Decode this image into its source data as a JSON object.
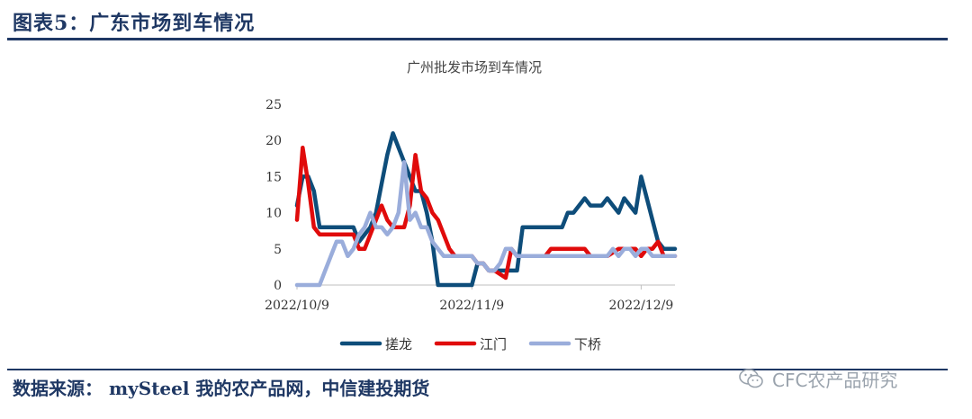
{
  "figure": {
    "title": "图表5：广东市场到车情况",
    "source": "数据来源：  mySteel 我的农产品网，中信建投期货",
    "watermark": "CFC农产品研究",
    "rule_color": "#1f3864"
  },
  "chart_data": {
    "type": "line",
    "title": "广州批发市场到车情况",
    "xlabel": "",
    "ylabel": "",
    "x_tick_labels": [
      "2022/10/9",
      "2022/11/9",
      "2022/12/9"
    ],
    "x_tick_dates": [
      "2022-10-09",
      "2022-11-09",
      "2022-12-09"
    ],
    "x_range": [
      "2022-10-09",
      "2022-12-15"
    ],
    "ylim": [
      0,
      25
    ],
    "y_ticks": [
      0,
      5,
      10,
      15,
      20,
      25
    ],
    "grid": false,
    "legend_position": "bottom",
    "series": [
      {
        "name": "搓龙",
        "color": "#0e4d7a",
        "points": [
          [
            "2022-10-09",
            11
          ],
          [
            "2022-10-10",
            15
          ],
          [
            "2022-10-11",
            15
          ],
          [
            "2022-10-12",
            13
          ],
          [
            "2022-10-13",
            8
          ],
          [
            "2022-10-19",
            8
          ],
          [
            "2022-10-20",
            6
          ],
          [
            "2022-10-22",
            8
          ],
          [
            "2022-10-23",
            10
          ],
          [
            "2022-10-24",
            14
          ],
          [
            "2022-10-25",
            18
          ],
          [
            "2022-10-26",
            21
          ],
          [
            "2022-10-27",
            19
          ],
          [
            "2022-10-28",
            17
          ],
          [
            "2022-10-29",
            15
          ],
          [
            "2022-10-30",
            13
          ],
          [
            "2022-10-31",
            13
          ],
          [
            "2022-11-01",
            10
          ],
          [
            "2022-11-02",
            6
          ],
          [
            "2022-11-03",
            0
          ],
          [
            "2022-11-09",
            0
          ],
          [
            "2022-11-10",
            3
          ],
          [
            "2022-11-11",
            3
          ],
          [
            "2022-11-12",
            2
          ],
          [
            "2022-11-15",
            2
          ],
          [
            "2022-11-17",
            2
          ],
          [
            "2022-11-18",
            8
          ],
          [
            "2022-11-25",
            8
          ],
          [
            "2022-11-26",
            10
          ],
          [
            "2022-11-27",
            10
          ],
          [
            "2022-11-28",
            11
          ],
          [
            "2022-11-29",
            12
          ],
          [
            "2022-11-30",
            11
          ],
          [
            "2022-12-02",
            11
          ],
          [
            "2022-12-03",
            12
          ],
          [
            "2022-12-04",
            11
          ],
          [
            "2022-12-05",
            10
          ],
          [
            "2022-12-06",
            12
          ],
          [
            "2022-12-07",
            11
          ],
          [
            "2022-12-08",
            10
          ],
          [
            "2022-12-09",
            15
          ],
          [
            "2022-12-10",
            12
          ],
          [
            "2022-12-11",
            9
          ],
          [
            "2022-12-12",
            6
          ],
          [
            "2022-12-13",
            5
          ],
          [
            "2022-12-15",
            5
          ]
        ]
      },
      {
        "name": "江门",
        "color": "#e00b0b",
        "points": [
          [
            "2022-10-09",
            9
          ],
          [
            "2022-10-10",
            19
          ],
          [
            "2022-10-11",
            14
          ],
          [
            "2022-10-12",
            8
          ],
          [
            "2022-10-13",
            7
          ],
          [
            "2022-10-19",
            7
          ],
          [
            "2022-10-20",
            5
          ],
          [
            "2022-10-21",
            5
          ],
          [
            "2022-10-22",
            7
          ],
          [
            "2022-10-23",
            9
          ],
          [
            "2022-10-24",
            11
          ],
          [
            "2022-10-25",
            9
          ],
          [
            "2022-10-26",
            8
          ],
          [
            "2022-10-27",
            8
          ],
          [
            "2022-10-28",
            8
          ],
          [
            "2022-10-29",
            11
          ],
          [
            "2022-10-30",
            18
          ],
          [
            "2022-10-31",
            13
          ],
          [
            "2022-11-01",
            12
          ],
          [
            "2022-11-02",
            10
          ],
          [
            "2022-11-03",
            9
          ],
          [
            "2022-11-04",
            7
          ],
          [
            "2022-11-05",
            5
          ],
          [
            "2022-11-06",
            4
          ],
          [
            "2022-11-09",
            4
          ],
          [
            "2022-11-10",
            3
          ],
          [
            "2022-11-11",
            3
          ],
          [
            "2022-11-12",
            2
          ],
          [
            "2022-11-13",
            2
          ],
          [
            "2022-11-15",
            1
          ],
          [
            "2022-11-16",
            5
          ],
          [
            "2022-11-17",
            4
          ],
          [
            "2022-11-18",
            4
          ],
          [
            "2022-11-20",
            4
          ],
          [
            "2022-11-22",
            4
          ],
          [
            "2022-11-23",
            5
          ],
          [
            "2022-11-29",
            5
          ],
          [
            "2022-11-30",
            4
          ],
          [
            "2022-12-03",
            4
          ],
          [
            "2022-12-05",
            5
          ],
          [
            "2022-12-07",
            5
          ],
          [
            "2022-12-08",
            5
          ],
          [
            "2022-12-09",
            4
          ],
          [
            "2022-12-10",
            5
          ],
          [
            "2022-12-11",
            5
          ],
          [
            "2022-12-12",
            6
          ],
          [
            "2022-12-13",
            4
          ],
          [
            "2022-12-15",
            4
          ]
        ]
      },
      {
        "name": "下桥",
        "color": "#9aaddb",
        "points": [
          [
            "2022-10-09",
            0
          ],
          [
            "2022-10-13",
            0
          ],
          [
            "2022-10-14",
            2
          ],
          [
            "2022-10-15",
            4
          ],
          [
            "2022-10-16",
            6
          ],
          [
            "2022-10-17",
            6
          ],
          [
            "2022-10-18",
            4
          ],
          [
            "2022-10-19",
            5
          ],
          [
            "2022-10-20",
            7
          ],
          [
            "2022-10-21",
            8
          ],
          [
            "2022-10-22",
            10
          ],
          [
            "2022-10-23",
            8
          ],
          [
            "2022-10-24",
            8
          ],
          [
            "2022-10-25",
            7
          ],
          [
            "2022-10-26",
            8
          ],
          [
            "2022-10-27",
            10
          ],
          [
            "2022-10-28",
            17
          ],
          [
            "2022-10-29",
            9
          ],
          [
            "2022-10-30",
            10
          ],
          [
            "2022-10-31",
            8
          ],
          [
            "2022-11-01",
            8
          ],
          [
            "2022-11-02",
            6
          ],
          [
            "2022-11-03",
            5
          ],
          [
            "2022-11-04",
            4
          ],
          [
            "2022-11-09",
            4
          ],
          [
            "2022-11-10",
            3
          ],
          [
            "2022-11-11",
            3
          ],
          [
            "2022-11-12",
            2
          ],
          [
            "2022-11-13",
            2
          ],
          [
            "2022-11-14",
            3
          ],
          [
            "2022-11-15",
            5
          ],
          [
            "2022-11-16",
            5
          ],
          [
            "2022-11-17",
            4
          ],
          [
            "2022-11-18",
            4
          ],
          [
            "2022-11-20",
            4
          ],
          [
            "2022-11-27",
            4
          ],
          [
            "2022-11-30",
            4
          ],
          [
            "2022-12-01",
            4
          ],
          [
            "2022-12-02",
            4
          ],
          [
            "2022-12-03",
            4
          ],
          [
            "2022-12-04",
            5
          ],
          [
            "2022-12-05",
            4
          ],
          [
            "2022-12-06",
            5
          ],
          [
            "2022-12-07",
            5
          ],
          [
            "2022-12-08",
            4
          ],
          [
            "2022-12-09",
            5
          ],
          [
            "2022-12-10",
            5
          ],
          [
            "2022-12-11",
            4
          ],
          [
            "2022-12-12",
            4
          ],
          [
            "2022-12-15",
            4
          ]
        ]
      }
    ]
  }
}
